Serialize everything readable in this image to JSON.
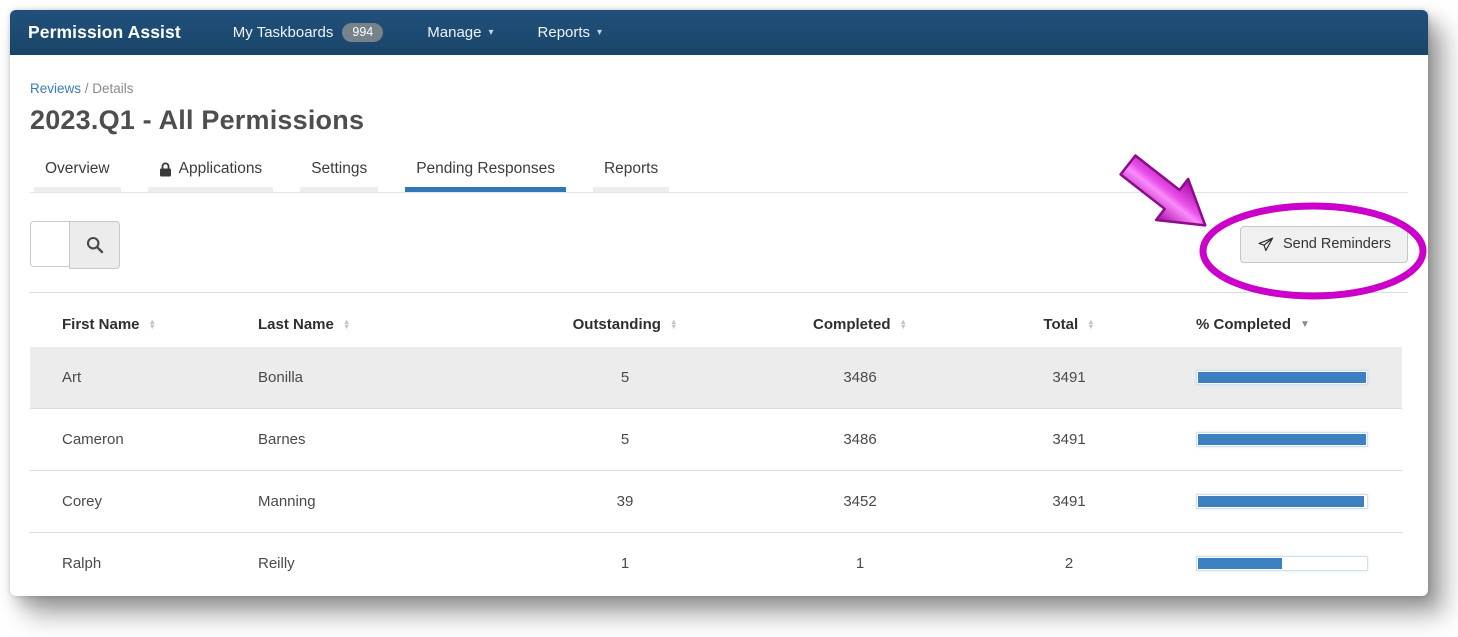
{
  "navbar": {
    "brand": "Permission Assist",
    "items": [
      {
        "label": "My Taskboards",
        "badge": "994"
      },
      {
        "label": "Manage",
        "caret": "▾"
      },
      {
        "label": "Reports",
        "caret": "▾"
      }
    ]
  },
  "breadcrumb": {
    "link": "Reviews",
    "separator": " / ",
    "current": "Details"
  },
  "page": {
    "title": "2023.Q1 - All Permissions"
  },
  "tabs": [
    {
      "label": "Overview"
    },
    {
      "label": "Applications",
      "icon": "lock"
    },
    {
      "label": "Settings"
    },
    {
      "label": "Pending Responses",
      "active": true
    },
    {
      "label": "Reports"
    }
  ],
  "toolbar": {
    "search_value": "",
    "send_reminders_label": "Send Reminders"
  },
  "table": {
    "columns": [
      {
        "label": "First Name",
        "sort_up": "▲",
        "sort_down": "▼",
        "sort": "none"
      },
      {
        "label": "Last Name",
        "sort_up": "▲",
        "sort_down": "▼",
        "sort": "none"
      },
      {
        "label": "Outstanding",
        "sort_up": "▲",
        "sort_down": "▼",
        "sort": "none"
      },
      {
        "label": "Completed",
        "sort_up": "▲",
        "sort_down": "▼",
        "sort": "none"
      },
      {
        "label": "Total",
        "sort_up": "▲",
        "sort_down": "▼",
        "sort": "none"
      },
      {
        "label": "% Completed",
        "sort_up": "",
        "sort_down": "▼",
        "sort": "desc"
      }
    ],
    "rows": [
      {
        "first_name": "Art",
        "last_name": "Bonilla",
        "outstanding": "5",
        "completed": "3486",
        "total": "3491",
        "percent": 99.86
      },
      {
        "first_name": "Cameron",
        "last_name": "Barnes",
        "outstanding": "5",
        "completed": "3486",
        "total": "3491",
        "percent": 99.86
      },
      {
        "first_name": "Corey",
        "last_name": "Manning",
        "outstanding": "39",
        "completed": "3452",
        "total": "3491",
        "percent": 98.88
      },
      {
        "first_name": "Ralph",
        "last_name": "Reilly",
        "outstanding": "1",
        "completed": "1",
        "total": "2",
        "percent": 50
      }
    ]
  },
  "colors": {
    "navbar_blue": "#1d4b73",
    "accent_blue": "#3077b5",
    "progress_blue": "#3c80c2",
    "badge_gray": "#78828a",
    "annotation_magenta": "#cb00cb"
  }
}
